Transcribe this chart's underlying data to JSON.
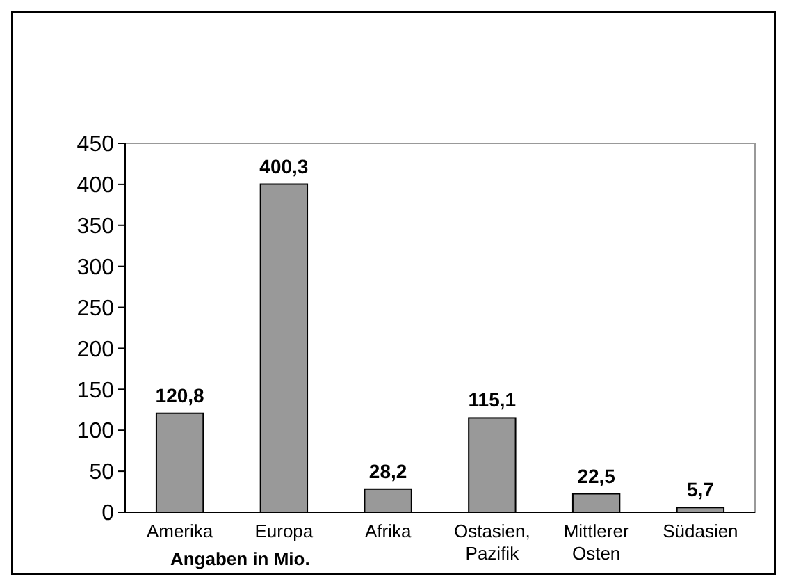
{
  "chart_data": {
    "type": "bar",
    "xlabel": "Angaben in Mio.",
    "categories": [
      "Amerika",
      "Europa",
      "Afrika",
      "Ostasien, Pazifik",
      "Mittlerer Osten",
      "Südasien"
    ],
    "values": [
      120.8,
      400.3,
      28.2,
      115.1,
      22.5,
      5.7
    ],
    "value_labels": [
      "120,8",
      "400,3",
      "28,2",
      "115,1",
      "22,5",
      "5,7"
    ],
    "color": "#999999",
    "ylim": [
      0,
      450
    ],
    "yticks": [
      0,
      50,
      100,
      150,
      200,
      250,
      300,
      350,
      400,
      450
    ],
    "grid": false
  }
}
